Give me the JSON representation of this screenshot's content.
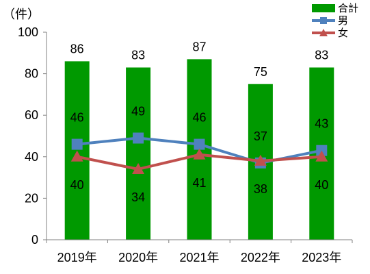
{
  "chart_data": {
    "type": "bar",
    "unit_label": "（件）",
    "categories": [
      "2019年",
      "2020年",
      "2021年",
      "2022年",
      "2023年"
    ],
    "ylim": [
      0,
      100
    ],
    "y_ticks": [
      "0",
      "20",
      "40",
      "60",
      "80",
      "100"
    ],
    "y_tick_values": [
      0,
      20,
      40,
      60,
      80,
      100
    ],
    "grid": false,
    "legend_position": "top-right",
    "series": [
      {
        "name": "合計",
        "kind": "bar",
        "color": "#009900",
        "marker": "rect",
        "values": [
          86,
          83,
          87,
          75,
          83
        ]
      },
      {
        "name": "男",
        "kind": "line",
        "color": "#4F81BD",
        "marker": "square",
        "values": [
          46,
          49,
          46,
          37,
          43
        ]
      },
      {
        "name": "女",
        "kind": "line",
        "color": "#C0504D",
        "marker": "triangle",
        "values": [
          40,
          34,
          41,
          38,
          40
        ]
      }
    ]
  }
}
